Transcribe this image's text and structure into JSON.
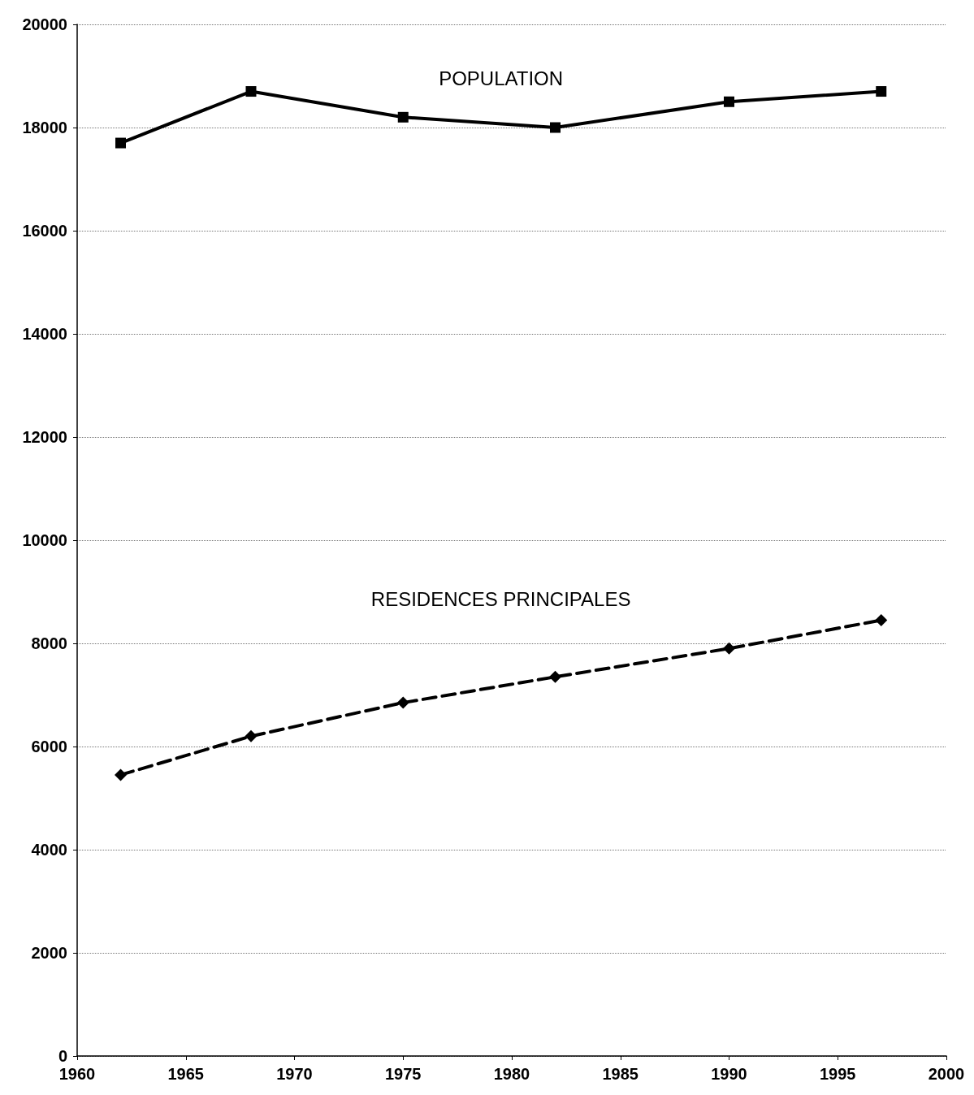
{
  "chart_data": {
    "type": "line",
    "x": [
      1962,
      1968,
      1975,
      1982,
      1990,
      1997
    ],
    "series": [
      {
        "name": "POPULATION",
        "color": "#000000",
        "marker": "square",
        "line_style": "solid",
        "values": [
          17700,
          18700,
          18200,
          18000,
          18500,
          18700
        ]
      },
      {
        "name": "RESIDENCES PRINCIPALES",
        "color": "#000000",
        "marker": "diamond",
        "line_style": "dashed",
        "values": [
          5450,
          6200,
          6850,
          7350,
          7900,
          8450
        ]
      }
    ],
    "xlim": [
      1960,
      2000
    ],
    "xticks": [
      1960,
      1965,
      1970,
      1975,
      1980,
      1985,
      1990,
      1995,
      2000
    ],
    "ylim": [
      0,
      20000
    ],
    "yticks": [
      0,
      2000,
      4000,
      6000,
      8000,
      10000,
      12000,
      14000,
      16000,
      18000,
      20000
    ],
    "grid": "y",
    "legend": false
  }
}
